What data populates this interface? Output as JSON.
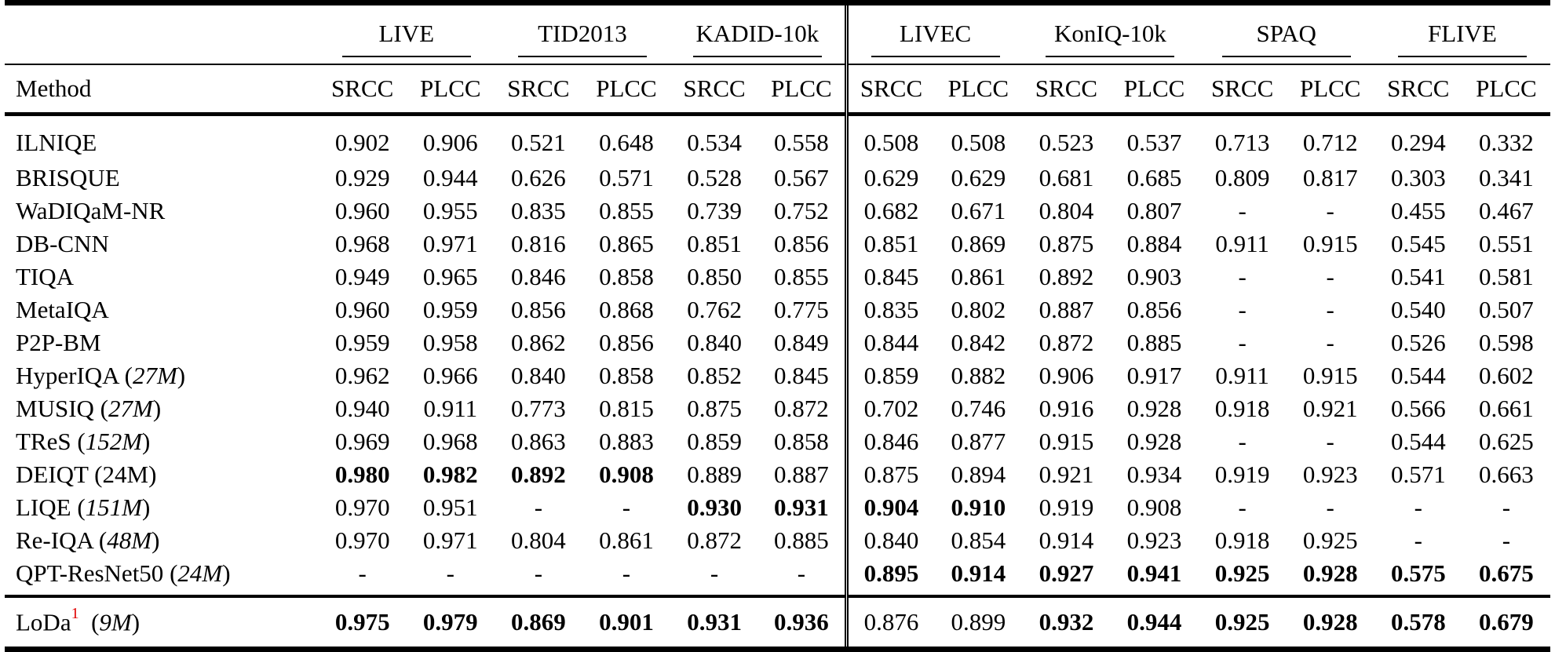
{
  "table": {
    "method_header": "Method",
    "groups": [
      {
        "name": "LIVE",
        "metrics": [
          "SRCC",
          "PLCC"
        ]
      },
      {
        "name": "TID2013",
        "metrics": [
          "SRCC",
          "PLCC"
        ]
      },
      {
        "name": "KADID-10k",
        "metrics": [
          "SRCC",
          "PLCC"
        ]
      },
      {
        "name": "LIVEC",
        "metrics": [
          "SRCC",
          "PLCC"
        ]
      },
      {
        "name": "KonIQ-10k",
        "metrics": [
          "SRCC",
          "PLCC"
        ]
      },
      {
        "name": "SPAQ",
        "metrics": [
          "SRCC",
          "PLCC"
        ]
      },
      {
        "name": "FLIVE",
        "metrics": [
          "SRCC",
          "PLCC"
        ]
      }
    ],
    "double_separator_after_group": "KADID-10k",
    "rows": [
      {
        "name": "ILNIQE",
        "params": "",
        "values": [
          "0.902",
          "0.906",
          "0.521",
          "0.648",
          "0.534",
          "0.558",
          "0.508",
          "0.508",
          "0.523",
          "0.537",
          "0.713",
          "0.712",
          "0.294",
          "0.332"
        ],
        "bold": []
      },
      {
        "name": "BRISQUE",
        "params": "",
        "values": [
          "0.929",
          "0.944",
          "0.626",
          "0.571",
          "0.528",
          "0.567",
          "0.629",
          "0.629",
          "0.681",
          "0.685",
          "0.809",
          "0.817",
          "0.303",
          "0.341"
        ],
        "bold": []
      },
      {
        "name": "WaDIQaM-NR",
        "params": "",
        "values": [
          "0.960",
          "0.955",
          "0.835",
          "0.855",
          "0.739",
          "0.752",
          "0.682",
          "0.671",
          "0.804",
          "0.807",
          "-",
          "-",
          "0.455",
          "0.467"
        ],
        "bold": []
      },
      {
        "name": "DB-CNN",
        "params": "",
        "values": [
          "0.968",
          "0.971",
          "0.816",
          "0.865",
          "0.851",
          "0.856",
          "0.851",
          "0.869",
          "0.875",
          "0.884",
          "0.911",
          "0.915",
          "0.545",
          "0.551"
        ],
        "bold": []
      },
      {
        "name": "TIQA",
        "params": "",
        "values": [
          "0.949",
          "0.965",
          "0.846",
          "0.858",
          "0.850",
          "0.855",
          "0.845",
          "0.861",
          "0.892",
          "0.903",
          "-",
          "-",
          "0.541",
          "0.581"
        ],
        "bold": []
      },
      {
        "name": "MetaIQA",
        "params": "",
        "values": [
          "0.960",
          "0.959",
          "0.856",
          "0.868",
          "0.762",
          "0.775",
          "0.835",
          "0.802",
          "0.887",
          "0.856",
          "-",
          "-",
          "0.540",
          "0.507"
        ],
        "bold": []
      },
      {
        "name": "P2P-BM",
        "params": "",
        "values": [
          "0.959",
          "0.958",
          "0.862",
          "0.856",
          "0.840",
          "0.849",
          "0.844",
          "0.842",
          "0.872",
          "0.885",
          "-",
          "-",
          "0.526",
          "0.598"
        ],
        "bold": []
      },
      {
        "name": "HyperIQA",
        "params": "27M",
        "values": [
          "0.962",
          "0.966",
          "0.840",
          "0.858",
          "0.852",
          "0.845",
          "0.859",
          "0.882",
          "0.906",
          "0.917",
          "0.911",
          "0.915",
          "0.544",
          "0.602"
        ],
        "bold": []
      },
      {
        "name": "MUSIQ",
        "params": "27M",
        "values": [
          "0.940",
          "0.911",
          "0.773",
          "0.815",
          "0.875",
          "0.872",
          "0.702",
          "0.746",
          "0.916",
          "0.928",
          "0.918",
          "0.921",
          "0.566",
          "0.661"
        ],
        "bold": []
      },
      {
        "name": "TReS",
        "params": "152M",
        "values": [
          "0.969",
          "0.968",
          "0.863",
          "0.883",
          "0.859",
          "0.858",
          "0.846",
          "0.877",
          "0.915",
          "0.928",
          "-",
          "-",
          "0.544",
          "0.625"
        ],
        "bold": []
      },
      {
        "name": "DEIQT",
        "params": "24M",
        "params_upright": true,
        "values": [
          "0.980",
          "0.982",
          "0.892",
          "0.908",
          "0.889",
          "0.887",
          "0.875",
          "0.894",
          "0.921",
          "0.934",
          "0.919",
          "0.923",
          "0.571",
          "0.663"
        ],
        "bold": [
          0,
          1,
          2,
          3
        ]
      },
      {
        "name": "LIQE",
        "params": "151M",
        "values": [
          "0.970",
          "0.951",
          "-",
          "-",
          "0.930",
          "0.931",
          "0.904",
          "0.910",
          "0.919",
          "0.908",
          "-",
          "-",
          "-",
          "-"
        ],
        "bold": [
          4,
          5,
          6,
          7
        ]
      },
      {
        "name": "Re-IQA",
        "params": "48M",
        "values": [
          "0.970",
          "0.971",
          "0.804",
          "0.861",
          "0.872",
          "0.885",
          "0.840",
          "0.854",
          "0.914",
          "0.923",
          "0.918",
          "0.925",
          "-",
          "-"
        ],
        "bold": []
      },
      {
        "name": "QPT-ResNet50",
        "params": "24M",
        "values": [
          "-",
          "-",
          "-",
          "-",
          "-",
          "-",
          "0.895",
          "0.914",
          "0.927",
          "0.941",
          "0.925",
          "0.928",
          "0.575",
          "0.675"
        ],
        "bold": [
          6,
          7,
          8,
          9,
          10,
          11,
          12,
          13
        ]
      }
    ],
    "ours": {
      "name": "LoDa",
      "footnote": "1",
      "footnote_color": "#e00000",
      "params": "9M",
      "values": [
        "0.975",
        "0.979",
        "0.869",
        "0.901",
        "0.931",
        "0.936",
        "0.876",
        "0.899",
        "0.932",
        "0.944",
        "0.925",
        "0.928",
        "0.578",
        "0.679"
      ],
      "bold": [
        0,
        1,
        2,
        3,
        4,
        5,
        8,
        9,
        10,
        11,
        12,
        13
      ]
    }
  }
}
